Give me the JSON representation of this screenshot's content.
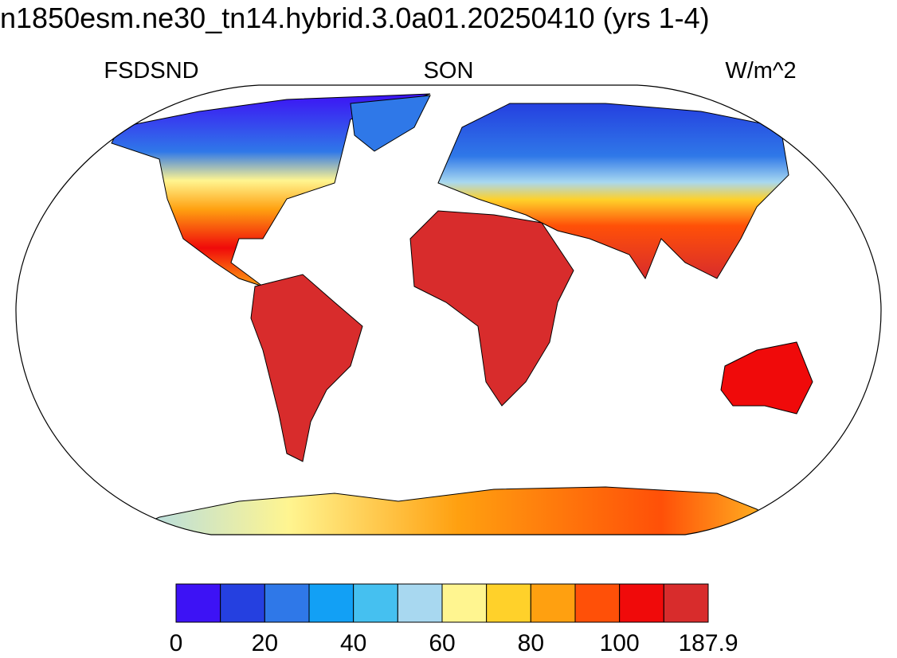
{
  "header": {
    "title": "n1850esm.ne30_tn14.hybrid.3.0a01.20250410 (yrs 1-4)",
    "left_label": "FSDSND",
    "center_label": "SON",
    "right_label": "W/m^2"
  },
  "colorbar": {
    "colors": [
      "#3d12f5",
      "#2540e0",
      "#2f78e8",
      "#12a0f5",
      "#45c0f0",
      "#a8d8f0",
      "#fff590",
      "#ffd12a",
      "#ffa010",
      "#ff5008",
      "#f00a0a",
      "#d82c2c"
    ],
    "ticks": [
      0,
      20,
      40,
      60,
      80,
      100,
      187.9
    ]
  }
}
